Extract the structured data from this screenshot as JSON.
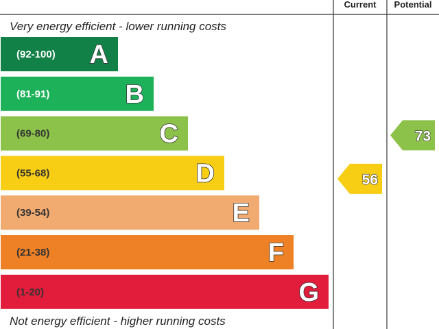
{
  "header": {
    "current_label": "Current",
    "potential_label": "Potential"
  },
  "captions": {
    "top": "Very energy efficient - lower running costs",
    "bottom": "Not energy efficient - higher running costs"
  },
  "chart_data": {
    "type": "bar",
    "bands": [
      {
        "letter": "A",
        "range": "(92-100)",
        "min": 92,
        "max": 100,
        "color": "#128148",
        "range_color": "#ffffff"
      },
      {
        "letter": "B",
        "range": "(81-91)",
        "min": 81,
        "max": 91,
        "color": "#1db25a",
        "range_color": "#ffffff"
      },
      {
        "letter": "C",
        "range": "(69-80)",
        "min": 69,
        "max": 80,
        "color": "#8cc14a",
        "range_color": "#333333"
      },
      {
        "letter": "D",
        "range": "(55-68)",
        "min": 55,
        "max": 68,
        "color": "#f7ce13",
        "range_color": "#333333"
      },
      {
        "letter": "E",
        "range": "(39-54)",
        "min": 39,
        "max": 54,
        "color": "#f1aa6f",
        "range_color": "#333333"
      },
      {
        "letter": "F",
        "range": "(21-38)",
        "min": 21,
        "max": 38,
        "color": "#ee8125",
        "range_color": "#333333"
      },
      {
        "letter": "G",
        "range": "(1-20)",
        "min": 1,
        "max": 20,
        "color": "#e21c3b",
        "range_color": "#333333"
      }
    ],
    "ratings": [
      {
        "column": "Current",
        "value": 56,
        "band": "D",
        "color": "#f7ce13"
      },
      {
        "column": "Potential",
        "value": 73,
        "band": "C",
        "color": "#8cc14a"
      }
    ]
  }
}
